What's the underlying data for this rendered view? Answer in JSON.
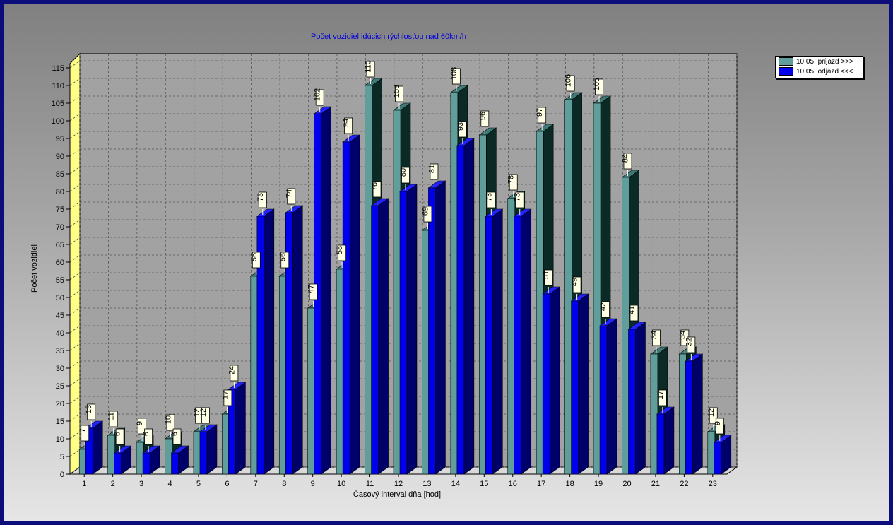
{
  "chart_data": {
    "type": "bar",
    "title": "Počet vozidiel idúcich rýchlosťou nad 60km/h",
    "xlabel": "Časový interval dňa [hod]",
    "ylabel": "Počet vozidiel",
    "ylim": [
      0,
      115
    ],
    "yticks": [
      0,
      5,
      10,
      15,
      20,
      25,
      30,
      35,
      40,
      45,
      50,
      55,
      60,
      65,
      70,
      75,
      80,
      85,
      90,
      95,
      100,
      105,
      110,
      115
    ],
    "grid": true,
    "legend_position": "top-right",
    "categories": [
      "1",
      "2",
      "3",
      "4",
      "5",
      "6",
      "7",
      "8",
      "9",
      "10",
      "11",
      "12",
      "13",
      "14",
      "15",
      "16",
      "17",
      "18",
      "19",
      "20",
      "21",
      "22",
      "23"
    ],
    "series": [
      {
        "name": "10.05.  príjazd >>>",
        "color": "#5f9e9a",
        "values": [
          7,
          11,
          9,
          10,
          12,
          17,
          56,
          56,
          47,
          58,
          110,
          103,
          69,
          108,
          96,
          78,
          97,
          106,
          105,
          84,
          34,
          34,
          12
        ]
      },
      {
        "name": "10.05.  odjazd <<<",
        "color": "#0000ee",
        "values": [
          13,
          6,
          6,
          6,
          12,
          24,
          73,
          74,
          102,
          94,
          76,
          80,
          81,
          93,
          73,
          73,
          51,
          49,
          42,
          41,
          17,
          32,
          9
        ]
      }
    ]
  }
}
